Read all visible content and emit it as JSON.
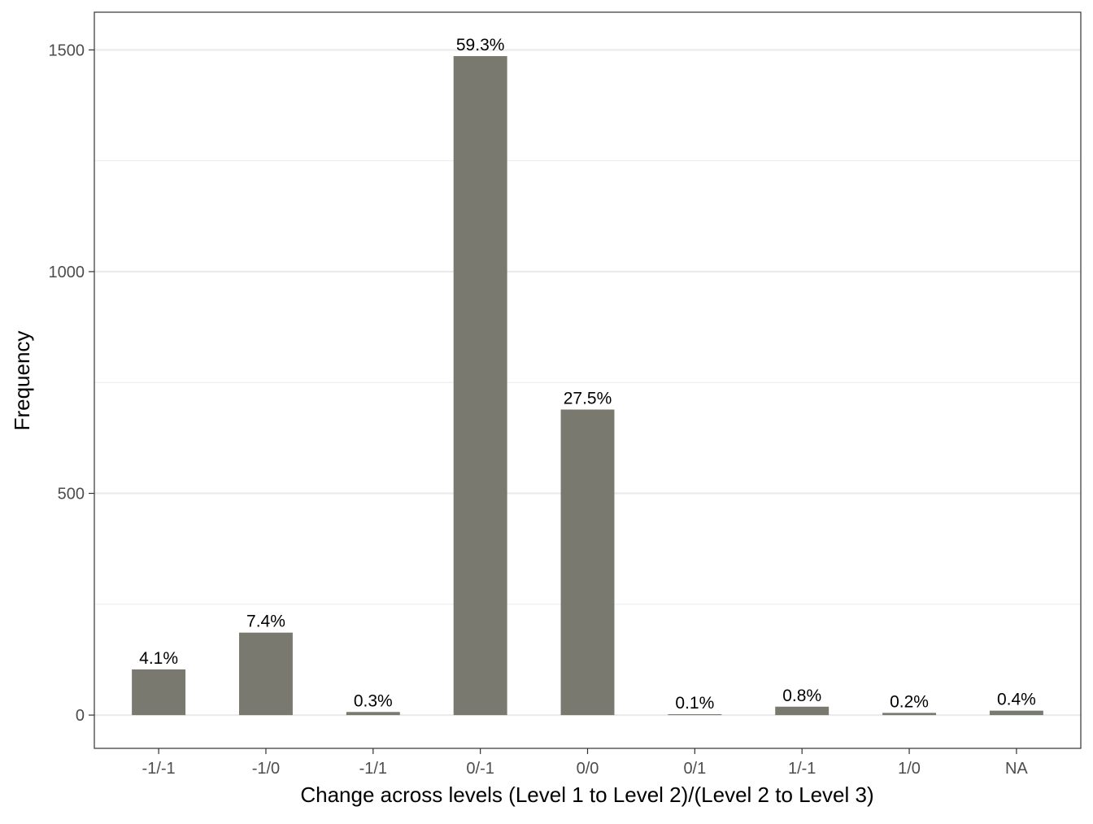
{
  "chart_data": {
    "type": "bar",
    "xlabel": "Change across levels (Level 1 to Level 2)/(Level 2 to Level 3)",
    "ylabel": "Frequency",
    "categories": [
      "-1/-1",
      "-1/0",
      "-1/1",
      "0/-1",
      "0/0",
      "0/1",
      "1/-1",
      "1/0",
      "NA"
    ],
    "values": [
      103,
      186,
      7,
      1486,
      689,
      2,
      19,
      5,
      10
    ],
    "data_labels": [
      "4.1%",
      "7.4%",
      "0.3%",
      "59.3%",
      "27.5%",
      "0.1%",
      "0.8%",
      "0.2%",
      "0.4%"
    ],
    "ylim": [
      -75,
      1585
    ],
    "y_ticks": [
      0,
      500,
      1000,
      1500
    ],
    "y_tick_labels": [
      "0",
      "500",
      "1000",
      "1500"
    ],
    "y_minor_grid": [
      250,
      750,
      1250
    ],
    "grid": true,
    "legend": "none",
    "bar_color": "#797970",
    "grid_color": "#ebebeb",
    "panel_border_color": "#333333",
    "text_color": "#000000",
    "tick_label_color": "#4d4d4d"
  }
}
